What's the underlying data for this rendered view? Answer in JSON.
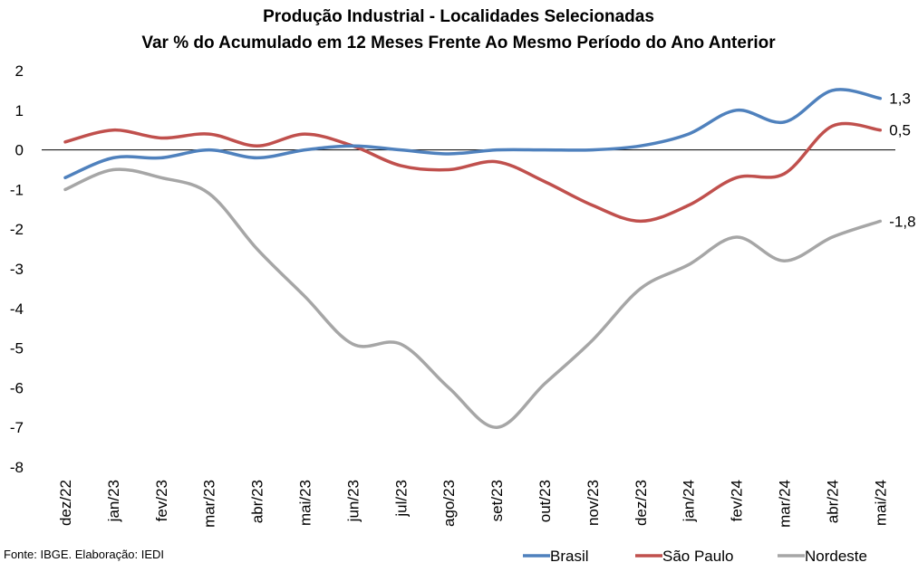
{
  "chart_data": {
    "type": "line",
    "title": "Produção Industrial - Localidades Selecionadas",
    "subtitle": "Var % do Acumulado em 12 Meses Frente Ao Mesmo Período do Ano Anterior",
    "categories": [
      "dez/22",
      "jan/23",
      "fev/23",
      "mar/23",
      "abr/23",
      "mai/23",
      "jun/23",
      "jul/23",
      "ago/23",
      "set/23",
      "out/23",
      "nov/23",
      "dez/23",
      "jan/24",
      "fev/24",
      "mar/24",
      "abr/24",
      "mai/24"
    ],
    "y_ticks": [
      "2",
      "1",
      "0",
      "-1",
      "-2",
      "-3",
      "-4",
      "-5",
      "-6",
      "-7",
      "-8"
    ],
    "ylim": [
      -8,
      2
    ],
    "grid": false,
    "legend_position": "bottom-right",
    "series": [
      {
        "name": "Brasil",
        "color": "#4F81BD",
        "end_label": "1,3",
        "values": [
          -0.7,
          -0.2,
          -0.2,
          0.0,
          -0.2,
          0.0,
          0.1,
          0.0,
          -0.1,
          0.0,
          0.0,
          0.0,
          0.1,
          0.4,
          1.0,
          0.7,
          1.5,
          1.3
        ]
      },
      {
        "name": "São Paulo",
        "color": "#C0504D",
        "end_label": "0,5",
        "values": [
          0.2,
          0.5,
          0.3,
          0.4,
          0.1,
          0.4,
          0.1,
          -0.4,
          -0.5,
          -0.3,
          -0.8,
          -1.4,
          -1.8,
          -1.4,
          -0.7,
          -0.6,
          0.6,
          0.5
        ]
      },
      {
        "name": "Nordeste",
        "color": "#A6A6A6",
        "end_label": "-1,8",
        "values": [
          -1.0,
          -0.5,
          -0.7,
          -1.1,
          -2.5,
          -3.7,
          -4.9,
          -4.9,
          -6.0,
          -7.0,
          -5.9,
          -4.8,
          -3.5,
          -2.9,
          -2.2,
          -2.8,
          -2.2,
          -1.8
        ]
      }
    ]
  },
  "footer": {
    "source": "Fonte: IBGE. Elaboração: IEDI"
  }
}
